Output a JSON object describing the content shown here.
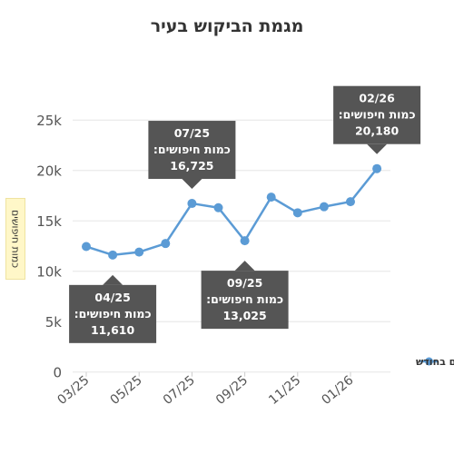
{
  "chart_data": {
    "type": "line",
    "title": "מגמת הביקוש בעיר",
    "ylabel": "כמות חיפושים",
    "xlabel": "",
    "x": [
      "03/25",
      "04/25",
      "05/25",
      "06/25",
      "07/25",
      "08/25",
      "09/25",
      "10/25",
      "11/25",
      "12/25",
      "01/26",
      "02/26"
    ],
    "x_tick_labels": [
      "03/25",
      "05/25",
      "07/25",
      "09/25",
      "11/25",
      "01/26"
    ],
    "series": [
      {
        "name": "חיפושים בחודש",
        "values": [
          12450,
          11610,
          11900,
          12750,
          16725,
          16300,
          13025,
          17350,
          15800,
          16400,
          16900,
          20180
        ]
      }
    ],
    "ylim": [
      0,
      27000
    ],
    "y_ticks": [
      0,
      5000,
      10000,
      15000,
      20000,
      25000
    ],
    "y_tick_labels": [
      "0",
      "5k",
      "10k",
      "15k",
      "20k",
      "25k"
    ],
    "grid": "horizontal",
    "legend": "right",
    "color": "#5b9bd5",
    "annotations": [
      {
        "index": 1,
        "date": "04/25",
        "label": "כמות חיפושים:",
        "value": "11,610",
        "placement": "below"
      },
      {
        "index": 4,
        "date": "07/25",
        "label": "כמות חיפושים:",
        "value": "16,725",
        "placement": "above"
      },
      {
        "index": 6,
        "date": "09/25",
        "label": "כמות חיפושים:",
        "value": "13,025",
        "placement": "below"
      },
      {
        "index": 11,
        "date": "02/26",
        "label": "כמות חיפושים:",
        "value": "20,180",
        "placement": "above"
      }
    ]
  }
}
